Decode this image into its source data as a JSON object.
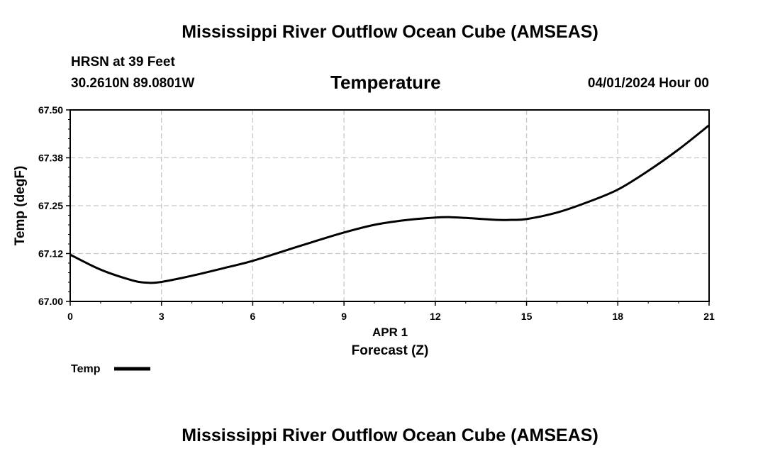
{
  "page": {
    "title_top": "Mississippi River Outflow Ocean Cube (AMSEAS)",
    "title_bottom": "Mississippi River Outflow Ocean Cube (AMSEAS)",
    "station": "HRSN at 39 Feet",
    "coords": "30.2610N  89.0801W",
    "chart_title": "Temperature",
    "datetime": "04/01/2024 Hour 00"
  },
  "chart_data": {
    "type": "line",
    "title": "Temperature",
    "xlabel": "Forecast (Z)",
    "xsublabel": "APR 1",
    "ylabel": "Temp (degF)",
    "xlim": [
      0,
      21
    ],
    "ylim": [
      67.0,
      67.5
    ],
    "xticks": [
      0,
      3,
      6,
      9,
      12,
      15,
      18,
      21
    ],
    "yticks": [
      67.0,
      67.125,
      67.25,
      67.375,
      67.5
    ],
    "yticklabels": [
      "67.00",
      "67.12",
      "67.25",
      "67.38",
      "67.50"
    ],
    "grid": true,
    "legend": "bottom-left",
    "line_color": "#000000",
    "series": [
      {
        "name": "Temp",
        "x": [
          0,
          1,
          2,
          2.5,
          3,
          4,
          5,
          6,
          7,
          8,
          9,
          10,
          11,
          12,
          12.5,
          13,
          14,
          14.5,
          15,
          16,
          17,
          18,
          19,
          20,
          21
        ],
        "values": [
          67.122,
          67.083,
          67.056,
          67.049,
          67.051,
          67.067,
          67.086,
          67.106,
          67.131,
          67.156,
          67.18,
          67.2,
          67.212,
          67.219,
          67.22,
          67.218,
          67.213,
          67.213,
          67.215,
          67.232,
          67.259,
          67.292,
          67.341,
          67.397,
          67.46
        ]
      }
    ]
  }
}
